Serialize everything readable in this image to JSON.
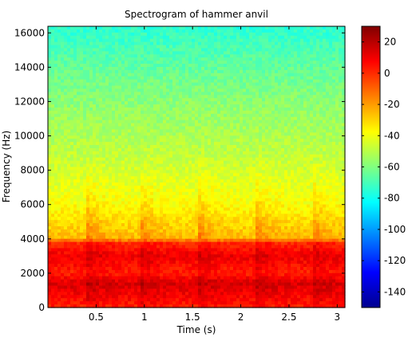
{
  "chart_data": {
    "type": "heatmap",
    "title": "Spectrogram of hammer anvil",
    "xlabel": "Time (s)",
    "ylabel": "Frequency (Hz)",
    "xlim": [
      0,
      3.08
    ],
    "ylim": [
      0,
      16384
    ],
    "x_ticks": [
      0.5,
      1,
      1.5,
      2,
      2.5,
      3
    ],
    "x_tick_labels": [
      "0.5",
      "1",
      "1.5",
      "2",
      "2.5",
      "3"
    ],
    "y_ticks": [
      0,
      2000,
      4000,
      6000,
      8000,
      10000,
      12000,
      14000,
      16000
    ],
    "y_tick_labels": [
      "0",
      "2000",
      "4000",
      "6000",
      "8000",
      "10000",
      "12000",
      "14000",
      "16000"
    ],
    "colorbar": {
      "range_db": [
        -150,
        30
      ],
      "ticks": [
        20,
        0,
        -20,
        -40,
        -60,
        -80,
        -100,
        -120,
        -140
      ],
      "tick_labels": [
        "20",
        "0",
        "-20",
        "-40",
        "-60",
        "-80",
        "-100",
        "-120",
        "-140"
      ],
      "colormap": "jet"
    },
    "impact_times_s": [
      0.42,
      0.98,
      1.58,
      2.17,
      2.76
    ],
    "level_profile_db": [
      {
        "freq_hz": 0,
        "db": 2
      },
      {
        "freq_hz": 1400,
        "db": 14
      },
      {
        "freq_hz": 2000,
        "db": 2
      },
      {
        "freq_hz": 3000,
        "db": 10
      },
      {
        "freq_hz": 3800,
        "db": 0
      },
      {
        "freq_hz": 4000,
        "db": -25
      },
      {
        "freq_hz": 6000,
        "db": -38
      },
      {
        "freq_hz": 8000,
        "db": -45
      },
      {
        "freq_hz": 10000,
        "db": -52
      },
      {
        "freq_hz": 12000,
        "db": -58
      },
      {
        "freq_hz": 14000,
        "db": -65
      },
      {
        "freq_hz": 16384,
        "db": -75
      }
    ],
    "grid": false
  }
}
